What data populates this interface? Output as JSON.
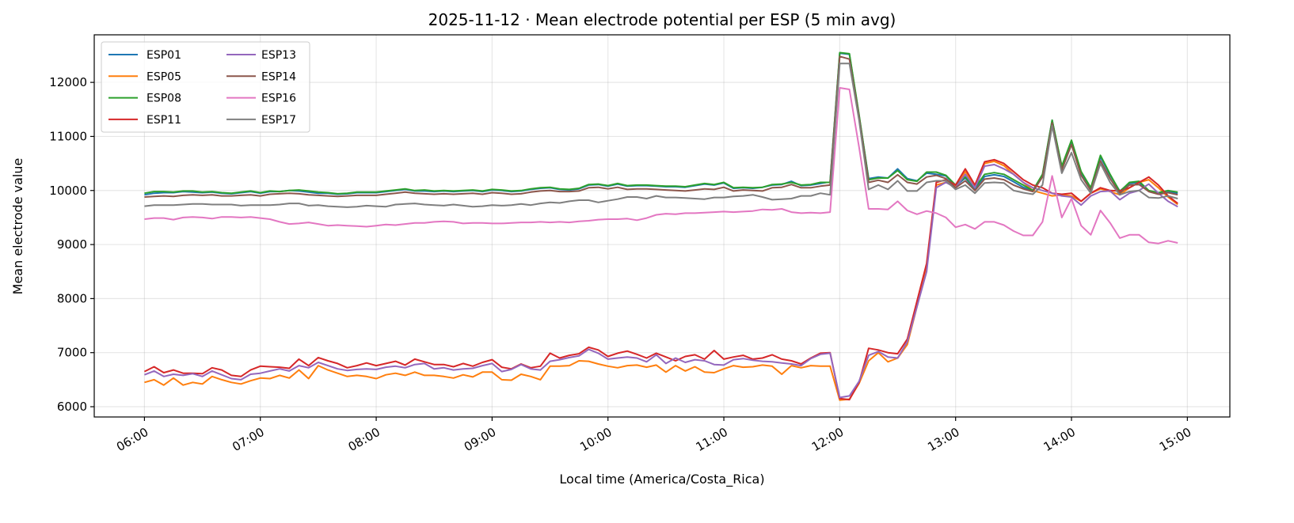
{
  "chart_data": {
    "type": "line",
    "title": "2025-11-12 · Mean electrode potential per ESP (5 min avg)",
    "xlabel": "Local time (America/Costa_Rica)",
    "ylabel": "Mean electrode value",
    "x_start": "06:00",
    "x_interval_minutes": 5,
    "xlim": [
      "05:34",
      "15:22"
    ],
    "ylim": [
      5810,
      12880
    ],
    "x_ticks": [
      "06:00",
      "07:00",
      "08:00",
      "09:00",
      "10:00",
      "11:00",
      "12:00",
      "13:00",
      "14:00",
      "15:00"
    ],
    "y_ticks": [
      6000,
      7000,
      8000,
      9000,
      10000,
      11000,
      12000
    ],
    "y_tick_labels": [
      "6000",
      "7000",
      "8000",
      "9000",
      "10000",
      "11000",
      "12000"
    ],
    "grid": true,
    "legend_position": "top-left",
    "legend_columns": 2,
    "series": [
      {
        "name": "ESP01",
        "color": "#1f77b4",
        "values": [
          9920,
          9950,
          9960,
          9960,
          9980,
          9970,
          9960,
          9970,
          9950,
          9940,
          9960,
          9980,
          9950,
          9980,
          9980,
          10000,
          9990,
          9970,
          9950,
          9950,
          9930,
          9940,
          9960,
          9960,
          9960,
          9980,
          10000,
          10020,
          9990,
          9990,
          9980,
          9990,
          9980,
          9990,
          10000,
          9980,
          10010,
          10000,
          9980,
          9990,
          10020,
          10040,
          10050,
          10020,
          10010,
          10030,
          10100,
          10110,
          10080,
          10120,
          10080,
          10090,
          10090,
          10080,
          10070,
          10070,
          10060,
          10090,
          10120,
          10100,
          10140,
          10040,
          10050,
          10040,
          10060,
          10100,
          10110,
          10170,
          10090,
          10100,
          10130,
          10160,
          12540,
          12520,
          11380,
          10220,
          10250,
          10230,
          10400,
          10220,
          10180,
          10320,
          10300,
          10270,
          10080,
          10230,
          10020,
          10260,
          10290,
          10260,
          10160,
          10060,
          9990,
          10280,
          11300,
          10420,
          10900,
          10300,
          10040,
          10620,
          10280,
          9990,
          10130,
          10150,
          9990,
          9940,
          9970,
          9950
        ]
      },
      {
        "name": "ESP05",
        "color": "#ff7f0e",
        "values": [
          6450,
          6500,
          6400,
          6530,
          6400,
          6450,
          6420,
          6560,
          6500,
          6450,
          6420,
          6480,
          6530,
          6520,
          6580,
          6530,
          6680,
          6520,
          6760,
          6680,
          6620,
          6560,
          6580,
          6560,
          6520,
          6590,
          6620,
          6580,
          6640,
          6580,
          6580,
          6560,
          6530,
          6590,
          6550,
          6640,
          6640,
          6500,
          6490,
          6600,
          6560,
          6500,
          6750,
          6750,
          6760,
          6850,
          6840,
          6790,
          6750,
          6720,
          6760,
          6770,
          6730,
          6770,
          6640,
          6760,
          6660,
          6740,
          6640,
          6630,
          6700,
          6760,
          6730,
          6740,
          6770,
          6750,
          6600,
          6760,
          6720,
          6760,
          6750,
          6750,
          6120,
          6140,
          6430,
          6850,
          7000,
          6830,
          6900,
          7150,
          7850,
          8550,
          10100,
          10150,
          10080,
          10350,
          10080,
          10500,
          10540,
          10460,
          10300,
          10150,
          10000,
          9950,
          9900,
          9920,
          9900,
          9800,
          9950,
          10030,
          9980,
          9920,
          10050,
          10150,
          10200,
          10050,
          9880,
          9740
        ]
      },
      {
        "name": "ESP08",
        "color": "#2ca02c",
        "values": [
          9950,
          9980,
          9980,
          9970,
          9990,
          9990,
          9970,
          9980,
          9960,
          9950,
          9970,
          9990,
          9960,
          9990,
          9980,
          10000,
          10010,
          9990,
          9970,
          9960,
          9940,
          9950,
          9970,
          9970,
          9970,
          9990,
          10010,
          10030,
          10000,
          10010,
          9990,
          10000,
          9990,
          10000,
          10010,
          9990,
          10020,
          10010,
          9990,
          10000,
          10030,
          10050,
          10060,
          10030,
          10020,
          10040,
          10110,
          10120,
          10090,
          10130,
          10090,
          10100,
          10100,
          10090,
          10080,
          10080,
          10070,
          10100,
          10130,
          10110,
          10150,
          10050,
          10060,
          10050,
          10060,
          10110,
          10120,
          10150,
          10100,
          10110,
          10150,
          10150,
          12550,
          12530,
          11400,
          10200,
          10230,
          10230,
          10370,
          10200,
          10170,
          10340,
          10340,
          10280,
          10100,
          10250,
          10050,
          10300,
          10330,
          10300,
          10200,
          10100,
          10000,
          10300,
          11300,
          10450,
          10930,
          10350,
          10050,
          10650,
          10300,
          9980,
          10150,
          10170,
          10000,
          9960,
          10000,
          9970
        ]
      },
      {
        "name": "ESP11",
        "color": "#d62728",
        "values": [
          6650,
          6740,
          6630,
          6680,
          6620,
          6620,
          6610,
          6720,
          6680,
          6580,
          6560,
          6680,
          6750,
          6740,
          6730,
          6710,
          6880,
          6760,
          6910,
          6850,
          6800,
          6720,
          6760,
          6810,
          6760,
          6800,
          6840,
          6770,
          6880,
          6830,
          6780,
          6780,
          6740,
          6800,
          6750,
          6820,
          6870,
          6730,
          6700,
          6790,
          6720,
          6750,
          6990,
          6900,
          6950,
          6980,
          7100,
          7050,
          6930,
          6990,
          7030,
          6970,
          6900,
          6990,
          6920,
          6850,
          6930,
          6960,
          6880,
          7040,
          6880,
          6920,
          6950,
          6880,
          6900,
          6960,
          6880,
          6850,
          6790,
          6900,
          6990,
          7000,
          6150,
          6130,
          6450,
          7080,
          7050,
          7000,
          6980,
          7250,
          7950,
          8650,
          10150,
          10200,
          10100,
          10400,
          10100,
          10530,
          10570,
          10500,
          10350,
          10200,
          10100,
          10050,
          9950,
          9930,
          9950,
          9800,
          9950,
          10050,
          10000,
          9990,
          10050,
          10150,
          10250,
          10100,
          9900,
          9760
        ]
      },
      {
        "name": "ESP13",
        "color": "#9467bd",
        "values": [
          6590,
          6660,
          6560,
          6600,
          6580,
          6610,
          6560,
          6660,
          6590,
          6520,
          6500,
          6600,
          6620,
          6660,
          6700,
          6660,
          6760,
          6720,
          6820,
          6760,
          6700,
          6670,
          6690,
          6700,
          6690,
          6730,
          6750,
          6720,
          6780,
          6800,
          6700,
          6720,
          6680,
          6700,
          6710,
          6760,
          6800,
          6650,
          6690,
          6780,
          6700,
          6680,
          6840,
          6870,
          6910,
          6940,
          7060,
          6990,
          6880,
          6900,
          6920,
          6900,
          6830,
          6960,
          6800,
          6900,
          6820,
          6870,
          6850,
          6780,
          6770,
          6870,
          6890,
          6860,
          6840,
          6830,
          6810,
          6790,
          6760,
          6890,
          6970,
          6990,
          6170,
          6200,
          6470,
          6950,
          7020,
          6920,
          6900,
          7200,
          7850,
          8500,
          10050,
          10150,
          10050,
          10300,
          10050,
          10450,
          10480,
          10400,
          10300,
          10150,
          10050,
          10000,
          9950,
          9900,
          9880,
          9730,
          9900,
          9980,
          9990,
          9830,
          9950,
          10000,
          10120,
          9950,
          9800,
          9700
        ]
      },
      {
        "name": "ESP14",
        "color": "#8c564b",
        "values": [
          9880,
          9890,
          9900,
          9890,
          9910,
          9920,
          9910,
          9920,
          9900,
          9900,
          9910,
          9920,
          9900,
          9930,
          9940,
          9950,
          9940,
          9920,
          9910,
          9900,
          9890,
          9900,
          9910,
          9910,
          9910,
          9930,
          9950,
          9970,
          9950,
          9940,
          9930,
          9940,
          9930,
          9940,
          9950,
          9930,
          9960,
          9950,
          9930,
          9940,
          9970,
          9990,
          10000,
          9980,
          9980,
          9990,
          10050,
          10060,
          10030,
          10060,
          10020,
          10030,
          10030,
          10020,
          10010,
          10000,
          9990,
          10010,
          10030,
          10020,
          10060,
          9990,
          10010,
          10000,
          9990,
          10050,
          10060,
          10110,
          10050,
          10050,
          10080,
          10100,
          12480,
          12430,
          11350,
          10150,
          10190,
          10150,
          10290,
          10150,
          10120,
          10250,
          10280,
          10220,
          10050,
          10180,
          10000,
          10210,
          10230,
          10200,
          10100,
          10030,
          9980,
          10250,
          11250,
          10380,
          10850,
          10280,
          10000,
          10550,
          10220,
          9950,
          10100,
          10110,
          9980,
          9930,
          9960,
          9920
        ]
      },
      {
        "name": "ESP16",
        "color": "#e377c2",
        "values": [
          9470,
          9490,
          9490,
          9460,
          9500,
          9510,
          9500,
          9480,
          9510,
          9510,
          9500,
          9510,
          9490,
          9470,
          9420,
          9380,
          9390,
          9410,
          9380,
          9350,
          9360,
          9350,
          9340,
          9330,
          9350,
          9370,
          9360,
          9380,
          9400,
          9400,
          9420,
          9430,
          9420,
          9390,
          9400,
          9400,
          9390,
          9390,
          9400,
          9410,
          9410,
          9420,
          9410,
          9420,
          9410,
          9430,
          9440,
          9460,
          9470,
          9470,
          9480,
          9450,
          9490,
          9550,
          9570,
          9560,
          9580,
          9580,
          9590,
          9600,
          9610,
          9600,
          9610,
          9620,
          9650,
          9640,
          9660,
          9600,
          9580,
          9590,
          9580,
          9600,
          11900,
          11870,
          10800,
          9660,
          9660,
          9650,
          9800,
          9630,
          9560,
          9620,
          9580,
          9500,
          9320,
          9370,
          9290,
          9420,
          9420,
          9360,
          9250,
          9170,
          9170,
          9420,
          10270,
          9500,
          9850,
          9350,
          9180,
          9630,
          9400,
          9120,
          9180,
          9180,
          9040,
          9020,
          9070,
          9030
        ]
      },
      {
        "name": "ESP17",
        "color": "#7f7f7f",
        "values": [
          9710,
          9730,
          9730,
          9730,
          9740,
          9750,
          9750,
          9740,
          9740,
          9740,
          9720,
          9730,
          9730,
          9730,
          9740,
          9760,
          9760,
          9720,
          9730,
          9710,
          9700,
          9690,
          9700,
          9720,
          9710,
          9700,
          9740,
          9750,
          9760,
          9740,
          9730,
          9720,
          9740,
          9720,
          9700,
          9710,
          9730,
          9720,
          9730,
          9750,
          9730,
          9760,
          9780,
          9770,
          9800,
          9820,
          9820,
          9780,
          9810,
          9840,
          9880,
          9880,
          9850,
          9900,
          9870,
          9870,
          9860,
          9850,
          9840,
          9870,
          9870,
          9890,
          9900,
          9920,
          9880,
          9830,
          9840,
          9850,
          9900,
          9900,
          9950,
          9920,
          12350,
          12350,
          11300,
          10020,
          10100,
          10020,
          10180,
          9990,
          9990,
          10150,
          10180,
          10180,
          10020,
          10100,
          9950,
          10140,
          10150,
          10140,
          10000,
          9960,
          9930,
          10100,
          11200,
          10320,
          10700,
          10200,
          9950,
          10500,
          10150,
          9920,
          9980,
          10000,
          9870,
          9860,
          9900,
          9850
        ]
      }
    ]
  }
}
